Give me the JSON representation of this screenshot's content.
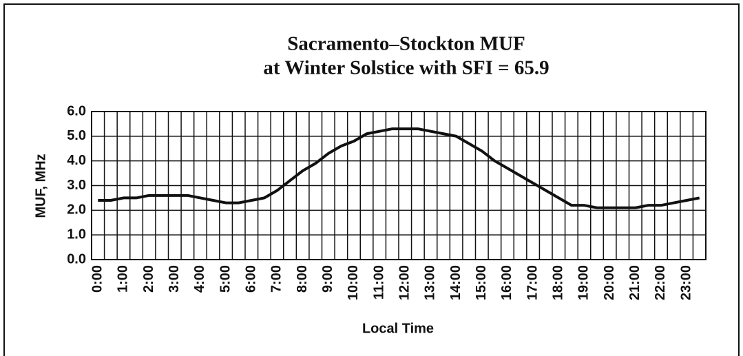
{
  "chart_data": {
    "type": "line",
    "title": "Sacramento–Stockton MUF",
    "subtitle": "at Winter Solstice with SFI = 65.9",
    "x_label": "Local Time",
    "y_label": "MUF, MHz",
    "categories": [
      "0:00",
      null,
      "1:00",
      null,
      "2:00",
      null,
      "3:00",
      null,
      "4:00",
      null,
      "5:00",
      null,
      "6:00",
      null,
      "7:00",
      null,
      "8:00",
      null,
      "9:00",
      null,
      "10:00",
      null,
      "11:00",
      null,
      "12:00",
      null,
      "13:00",
      null,
      "14:00",
      null,
      "15:00",
      null,
      "16:00",
      null,
      "17:00",
      null,
      "18:00",
      null,
      "19:00",
      null,
      "20:00",
      null,
      "21:00",
      null,
      "22:00",
      null,
      "23:00",
      null
    ],
    "series": [
      {
        "name": "MUF",
        "color": "#111111",
        "values": [
          2.4,
          2.4,
          2.5,
          2.5,
          2.6,
          2.6,
          2.6,
          2.6,
          2.5,
          2.4,
          2.3,
          2.3,
          2.4,
          2.5,
          2.8,
          3.2,
          3.6,
          3.9,
          4.3,
          4.6,
          4.8,
          5.1,
          5.2,
          5.3,
          5.3,
          5.3,
          5.2,
          5.1,
          5.0,
          4.7,
          4.4,
          4.0,
          3.7,
          3.4,
          3.1,
          2.8,
          2.5,
          2.2,
          2.2,
          2.1,
          2.1,
          2.1,
          2.1,
          2.2,
          2.2,
          2.3,
          2.4,
          2.5
        ]
      }
    ],
    "ylim": [
      0,
      6
    ],
    "yticks": [
      {
        "value": 0,
        "label": "0.0"
      },
      {
        "value": 1,
        "label": "1.0"
      },
      {
        "value": 2,
        "label": "2.0"
      },
      {
        "value": 3,
        "label": "3.0"
      },
      {
        "value": 4,
        "label": "4.0"
      },
      {
        "value": 5,
        "label": "5.0"
      },
      {
        "value": 6,
        "label": "6.0"
      }
    ],
    "grid": true
  }
}
